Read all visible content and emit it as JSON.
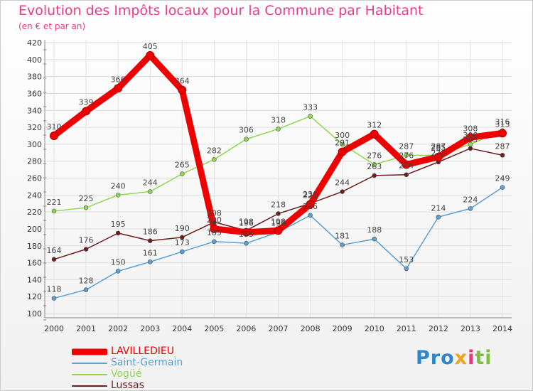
{
  "title": "Evolution des Impôts locaux pour la Commune par Habitant",
  "subtitle": "(en € et par an)",
  "brand": {
    "parts": [
      {
        "text": "Pro",
        "color": "#2f86c8"
      },
      {
        "text": "x",
        "color": "#f2a31b"
      },
      {
        "text": "i",
        "color": "#e8397a"
      },
      {
        "text": "ti",
        "color": "#7fbf3f"
      }
    ]
  },
  "chart_data": {
    "type": "line",
    "x": [
      "2000",
      "2001",
      "2002",
      "2003",
      "2004",
      "2005",
      "2006",
      "2007",
      "2008",
      "2009",
      "2010",
      "2011",
      "2012",
      "2013",
      "2014"
    ],
    "ylim": [
      100,
      420
    ],
    "yticks": [
      100,
      120,
      140,
      160,
      180,
      200,
      220,
      240,
      260,
      280,
      300,
      320,
      340,
      360,
      380,
      400,
      420
    ],
    "grid": true,
    "legend_position": "bottom-left",
    "series": [
      {
        "name": "LAVILLEDIEU",
        "color": "#ee0000",
        "thick": true,
        "values": [
          310,
          339,
          366,
          405,
          364,
          200,
          196,
          198,
          229,
          291,
          312,
          276,
          285,
          308,
          313
        ],
        "labels": [
          "310",
          "339",
          "366",
          "405",
          "364",
          "200",
          "196",
          "198",
          "229",
          "291",
          "312",
          "276",
          "285",
          "308",
          "313"
        ]
      },
      {
        "name": "Saint-Germain",
        "color": "#5a9fd6",
        "thick": false,
        "values": [
          118,
          128,
          150,
          161,
          173,
          185,
          183,
          196,
          216,
          181,
          188,
          153,
          214,
          224,
          249
        ],
        "labels": [
          "118",
          "128",
          "150",
          "161",
          "173",
          "185",
          "183",
          "196",
          "216",
          "181",
          "188",
          "153",
          "214",
          "224",
          "249"
        ]
      },
      {
        "name": "Vogüé",
        "color": "#8fd84f",
        "thick": false,
        "values": [
          221,
          225,
          240,
          244,
          265,
          282,
          306,
          318,
          333,
          300,
          276,
          287,
          287,
          300,
          316
        ],
        "labels": [
          "221",
          "225",
          "240",
          "244",
          "265",
          "282",
          "306",
          "318",
          "333",
          "300",
          "276",
          "287",
          "287",
          "300",
          "316"
        ]
      },
      {
        "name": "Lussas",
        "color": "#6b1e1e",
        "thick": false,
        "values": [
          164,
          176,
          195,
          186,
          190,
          208,
          198,
          218,
          230,
          244,
          263,
          264,
          279,
          295,
          287
        ],
        "labels": [
          "164",
          "176",
          "195",
          "186",
          "190",
          "208",
          "198",
          "218",
          "230",
          "244",
          "263",
          "264",
          "279",
          "295",
          "287"
        ]
      }
    ]
  }
}
